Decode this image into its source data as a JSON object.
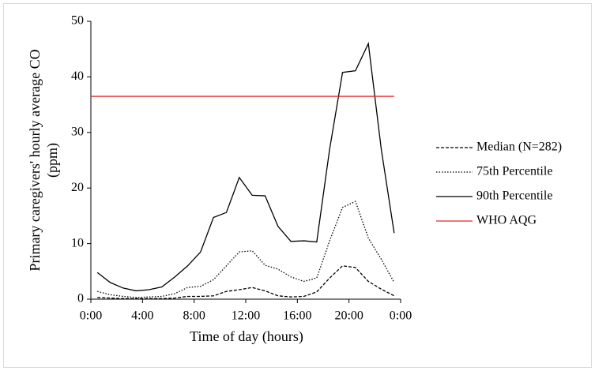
{
  "chart_data": {
    "type": "line",
    "x_label": "Time of day (hours)",
    "y_label": [
      "Primary caregivers' hourly average CO",
      "(ppm)"
    ],
    "x": [
      0.5,
      1.5,
      2.5,
      3.5,
      4.5,
      5.5,
      6.5,
      7.5,
      8.5,
      9.5,
      10.5,
      11.5,
      12.5,
      13.5,
      14.5,
      15.5,
      16.5,
      17.5,
      18.5,
      19.5,
      20.5,
      21.5,
      22.5,
      23.5
    ],
    "series": [
      {
        "name": "Median (N=282)",
        "color": "#000000",
        "dash": "4,2",
        "values": [
          0.3,
          0.2,
          0.1,
          0.1,
          0.1,
          0.1,
          0.2,
          0.5,
          0.5,
          0.6,
          1.4,
          1.7,
          2.1,
          1.5,
          0.6,
          0.4,
          0.5,
          1.3,
          3.8,
          6.0,
          5.7,
          3.2,
          1.8,
          0.6
        ]
      },
      {
        "name": "75th Percentile",
        "color": "#000000",
        "dash": "1.5,2",
        "values": [
          1.4,
          0.8,
          0.5,
          0.3,
          0.4,
          0.5,
          1.0,
          2.1,
          2.3,
          3.5,
          6.0,
          8.5,
          8.7,
          6.1,
          5.4,
          4.0,
          3.2,
          3.8,
          10.5,
          16.5,
          17.6,
          11.0,
          7.2,
          3.0
        ]
      },
      {
        "name": "90th Percentile",
        "color": "#000000",
        "dash": "none",
        "values": [
          4.8,
          3.0,
          2.0,
          1.5,
          1.7,
          2.2,
          4.0,
          6.0,
          8.5,
          14.7,
          15.6,
          21.9,
          18.7,
          18.6,
          13.1,
          10.4,
          10.5,
          10.3,
          27.0,
          40.8,
          41.1,
          46.0,
          27.0,
          11.9
        ]
      },
      {
        "name": "WHO AQG",
        "color": "#e8262a",
        "dash": "none",
        "x": [
          0,
          23.5
        ],
        "values": [
          36.5,
          36.5
        ]
      }
    ],
    "xlim": [
      0,
      24
    ],
    "xticks": [
      {
        "value": 0,
        "label": "0:00"
      },
      {
        "value": 4,
        "label": "4:00"
      },
      {
        "value": 8,
        "label": "8:00"
      },
      {
        "value": 12,
        "label": "12:00"
      },
      {
        "value": 16,
        "label": "16:00"
      },
      {
        "value": 20,
        "label": "20:00"
      },
      {
        "value": 24,
        "label": "0:00"
      }
    ],
    "ylim": [
      0,
      50
    ],
    "yticks": [
      0,
      10,
      20,
      30,
      40,
      50
    ],
    "grid": false,
    "legend": "right"
  }
}
